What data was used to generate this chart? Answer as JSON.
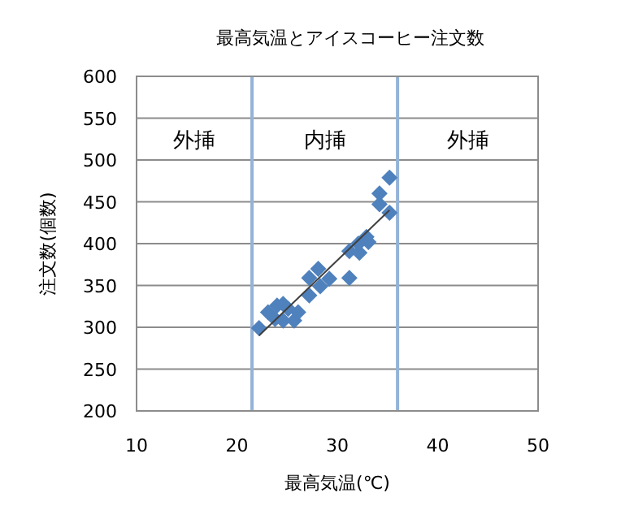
{
  "chart_data": {
    "type": "scatter",
    "title": "最高気温とアイスコーヒー注文数",
    "xlabel": "最高気温(℃)",
    "ylabel": "注文数(個数)",
    "xlim": [
      10,
      50
    ],
    "xticks": [
      10,
      20,
      30,
      40,
      50
    ],
    "ylim": [
      200,
      600
    ],
    "yticks": [
      200,
      250,
      300,
      350,
      400,
      450,
      500,
      550,
      600
    ],
    "grid": "y",
    "series": [
      {
        "color": "#4f81bd",
        "marker": "diamond",
        "x": [
          22.2,
          23.1,
          24.0,
          24.6,
          23.8,
          25.1,
          24.6,
          25.7,
          26.1,
          27.2,
          27.2,
          28.1,
          28.3,
          29.2,
          31.2,
          31.2,
          32.2,
          32.1,
          33.1,
          32.9,
          34.2,
          34.2,
          35.2,
          35.2
        ],
        "values": [
          299,
          318,
          326,
          328,
          310,
          322,
          308,
          308,
          318,
          338,
          359,
          370,
          349,
          358,
          359,
          391,
          389,
          400,
          402,
          408,
          460,
          447,
          479,
          437
        ]
      },
      {
        "type": "line",
        "color": "#404040",
        "marker": "none",
        "x": [
          22.2,
          35.2
        ],
        "values": [
          290,
          440
        ]
      }
    ],
    "ref_lines": [
      {
        "axis": "x",
        "value": 21.5,
        "color": "#95b3d7"
      },
      {
        "axis": "x",
        "value": 36,
        "color": "#95b3d7"
      }
    ],
    "annotations": [
      "外挿",
      "内挿",
      "外挿"
    ]
  }
}
